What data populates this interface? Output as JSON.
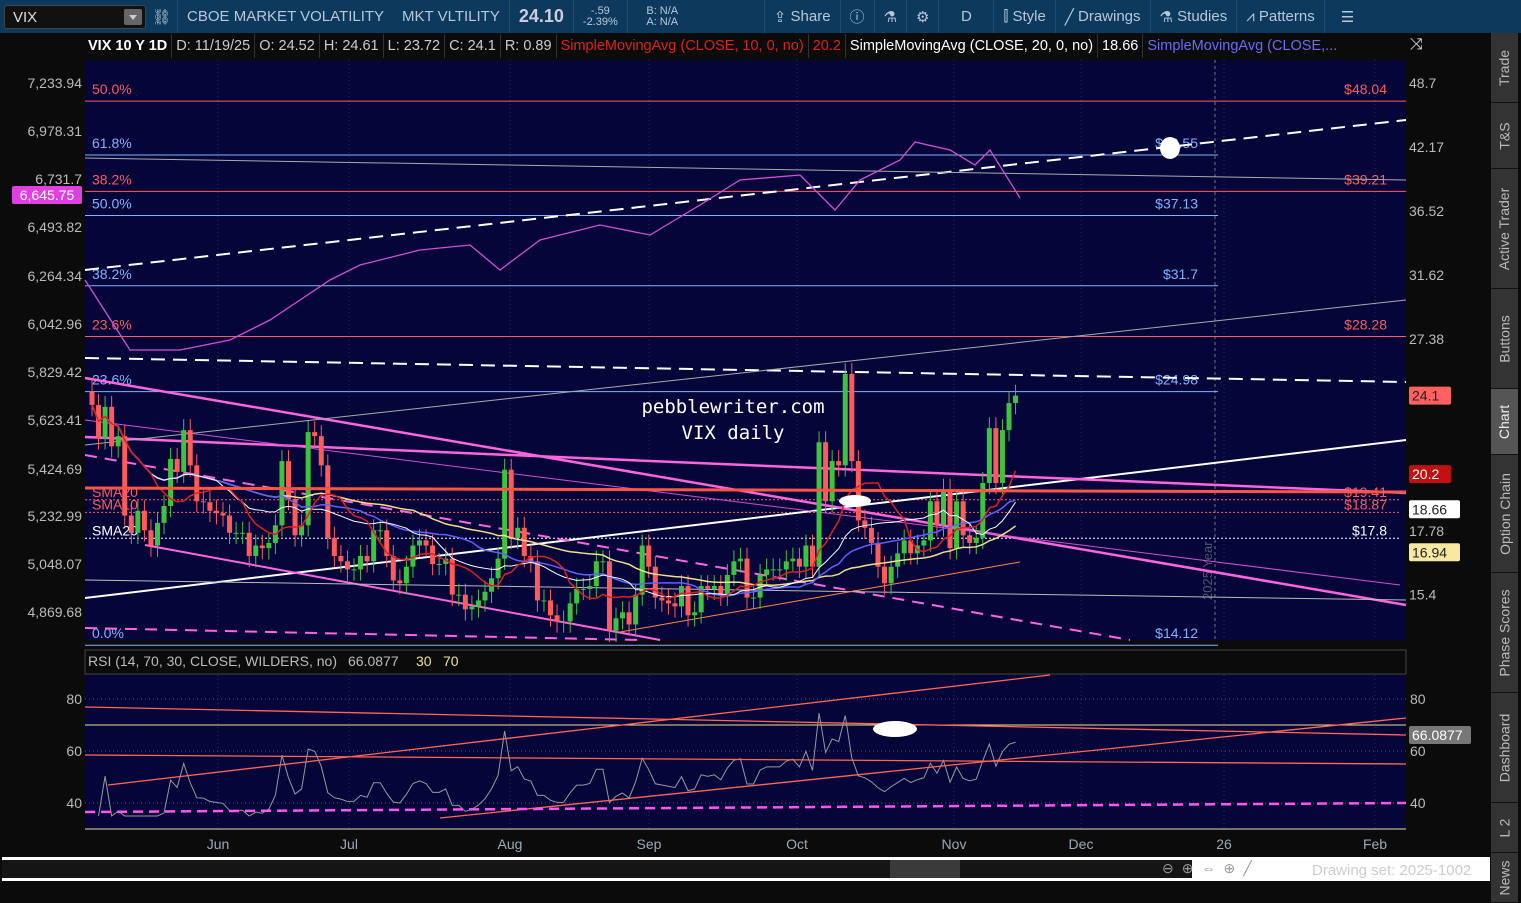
{
  "toolbar": {
    "symbol": "VIX",
    "description": "CBOE MARKET VOLATILITY",
    "exchange_name": "MKT VLTILITY",
    "last": "24.10",
    "change": "-.59",
    "change_pct": "-2.39%",
    "bid": "B: N/A",
    "ask": "A: N/A",
    "share": "Share",
    "period": "D",
    "style": "Style",
    "drawings": "Drawings",
    "studies": "Studies",
    "patterns": "Patterns"
  },
  "legend": {
    "title": "VIX 10 Y 1D",
    "date": "D: 11/19/25",
    "open": "O: 24.52",
    "high": "H: 24.61",
    "low": "L: 23.72",
    "close": "C: 24.1",
    "range": "R: 0.89",
    "sma10": "SimpleMovingAvg (CLOSE, 10, 0, no)",
    "sma10_val": "20.2",
    "sma20": "SimpleMovingAvg (CLOSE, 20, 0, no)",
    "sma20_val": "18.66",
    "sma50": "SimpleMovingAvg (CLOSE,..."
  },
  "colors": {
    "up": "#3ec33e",
    "down": "#ff5b5b",
    "sma10": "#e0201c",
    "sma20": "#ffffff",
    "sma50": "#6060ff",
    "sma200": "#f0e08c",
    "spx": "#d34fd3",
    "bg": "#05053a",
    "fib_red": "#ff5b5b",
    "fib_blue": "#7fb3ff"
  },
  "left_axis": [
    "7,233.94",
    "6,978.31",
    "6,731.7",
    "6,493.82",
    "6,264.34",
    "6,042.96",
    "5,829.42",
    "5,623.41",
    "5,424.69",
    "5,232.99",
    "5,048.07",
    "4,869.68"
  ],
  "left_marker": "6,645.75",
  "right_axis": [
    "48.7",
    "42.17",
    "36.52",
    "31.62",
    "27.38",
    "17.78",
    "15.4"
  ],
  "right_markers": [
    {
      "v": "24.1",
      "bg": "#ff6060",
      "fg": "#222"
    },
    {
      "v": "20.2",
      "bg": "#c01010",
      "fg": "#fff"
    },
    {
      "v": "18.66",
      "bg": "#ffffff",
      "fg": "#222"
    },
    {
      "v": "16.94",
      "bg": "#f8e8a0",
      "fg": "#222"
    }
  ],
  "fib_levels": [
    {
      "pct": "50.0%",
      "price": "$48.04",
      "p": 48.04,
      "c": "red"
    },
    {
      "pct": "61.8%",
      "price": "$42.55",
      "p": 42.55,
      "c": "blue"
    },
    {
      "pct": "38.2%",
      "price": "$39.21",
      "p": 39.21,
      "c": "red"
    },
    {
      "pct": "50.0%",
      "price": "$37.13",
      "p": 37.13,
      "c": "blue"
    },
    {
      "pct": "38.2%",
      "price": "$31.7",
      "p": 31.7,
      "c": "blue"
    },
    {
      "pct": "23.6%",
      "price": "$28.28",
      "p": 28.28,
      "c": "red"
    },
    {
      "pct": "23.6%",
      "price": "$24.98",
      "p": 24.98,
      "c": "blue"
    },
    {
      "pct": "0.0%",
      "price": "$14.12",
      "p": 14.12,
      "c": "blue"
    }
  ],
  "sma_levels": [
    {
      "label": "SMA20",
      "price": "$19.41",
      "p": 19.41
    },
    {
      "label": "SMA10",
      "price": "$18.87",
      "p": 18.87
    },
    {
      "label": "SMA20",
      "price": "$17.8",
      "p": 17.8
    }
  ],
  "watermark": [
    "pebblewriter.com",
    "VIX daily"
  ],
  "year_marker": "2025 Year",
  "vix_closes": [
    23.6,
    21.9,
    23.5,
    21.5,
    22,
    18.4,
    17.7,
    18.6,
    17.8,
    17.2,
    18.1,
    18.8,
    20.9,
    20.3,
    22.3,
    20.6,
    19.0,
    18.96,
    18.6,
    18.5,
    18.4,
    17.7,
    17.7,
    17.7,
    16.8,
    17.2,
    17.1,
    17.3,
    18.0,
    20.8,
    19.1,
    17.6,
    18.0,
    22.2,
    22.0,
    20.6,
    17.5,
    16.8,
    16.6,
    16.3,
    16.3,
    16.8,
    16.6,
    17.8,
    17.8,
    16.8,
    15.9,
    15.8,
    16.4,
    17.2,
    17.4,
    17.2,
    16.5,
    16.5,
    16.7,
    15.4,
    15.4,
    14.9,
    15.0,
    15.2,
    15.5,
    15.98,
    16.7,
    20.4,
    17.5,
    17.9,
    16.8,
    16.6,
    15.2,
    15.2,
    14.7,
    14.5,
    14.5,
    15.1,
    15.6,
    15.6,
    15.7,
    16.6,
    16.6,
    14.2,
    14.6,
    14.8,
    14.4,
    15.4,
    17.2,
    16.4,
    15.3,
    15.2,
    15.1,
    15.0,
    15.7,
    14.7,
    14.8,
    15.7,
    15.6,
    15.7,
    15.4,
    16.1,
    16.6,
    16.7,
    15.3,
    15.3,
    16.1,
    16.3,
    16.3,
    16.3,
    16.6,
    16.7,
    16.4,
    17.2,
    16.4,
    21.7,
    19.0,
    20.8,
    20.6,
    25.3,
    20.8,
    18.2,
    17.9,
    17.3,
    16.4,
    15.8,
    16.4,
    16.9,
    17.4,
    16.9,
    17.2,
    17.4,
    19.0,
    18.0,
    19.5,
    17.1,
    19.0,
    17.6,
    17.3,
    17.5,
    19.8,
    22.4,
    19.8,
    22.3,
    23.7,
    24.1
  ],
  "rsi": {
    "label": "RSI (14, 70, 30, CLOSE, WILDERS, no)",
    "value": "66.0877",
    "os": "30",
    "ob": "70",
    "axis": [
      "80",
      "60",
      "40"
    ]
  },
  "date_axis": [
    "Jun",
    "Jul",
    "Aug",
    "Sep",
    "Oct",
    "Nov",
    "Dec",
    "26",
    "Feb"
  ],
  "tabs": [
    "Trade",
    "T&S",
    "Active Trader",
    "Buttons",
    "Chart",
    "Option Chain",
    "Phase Scores",
    "Dashboard",
    "L 2",
    "News"
  ],
  "selected_tab": "Chart",
  "drawing_set": "Drawing set: 2025-1002"
}
